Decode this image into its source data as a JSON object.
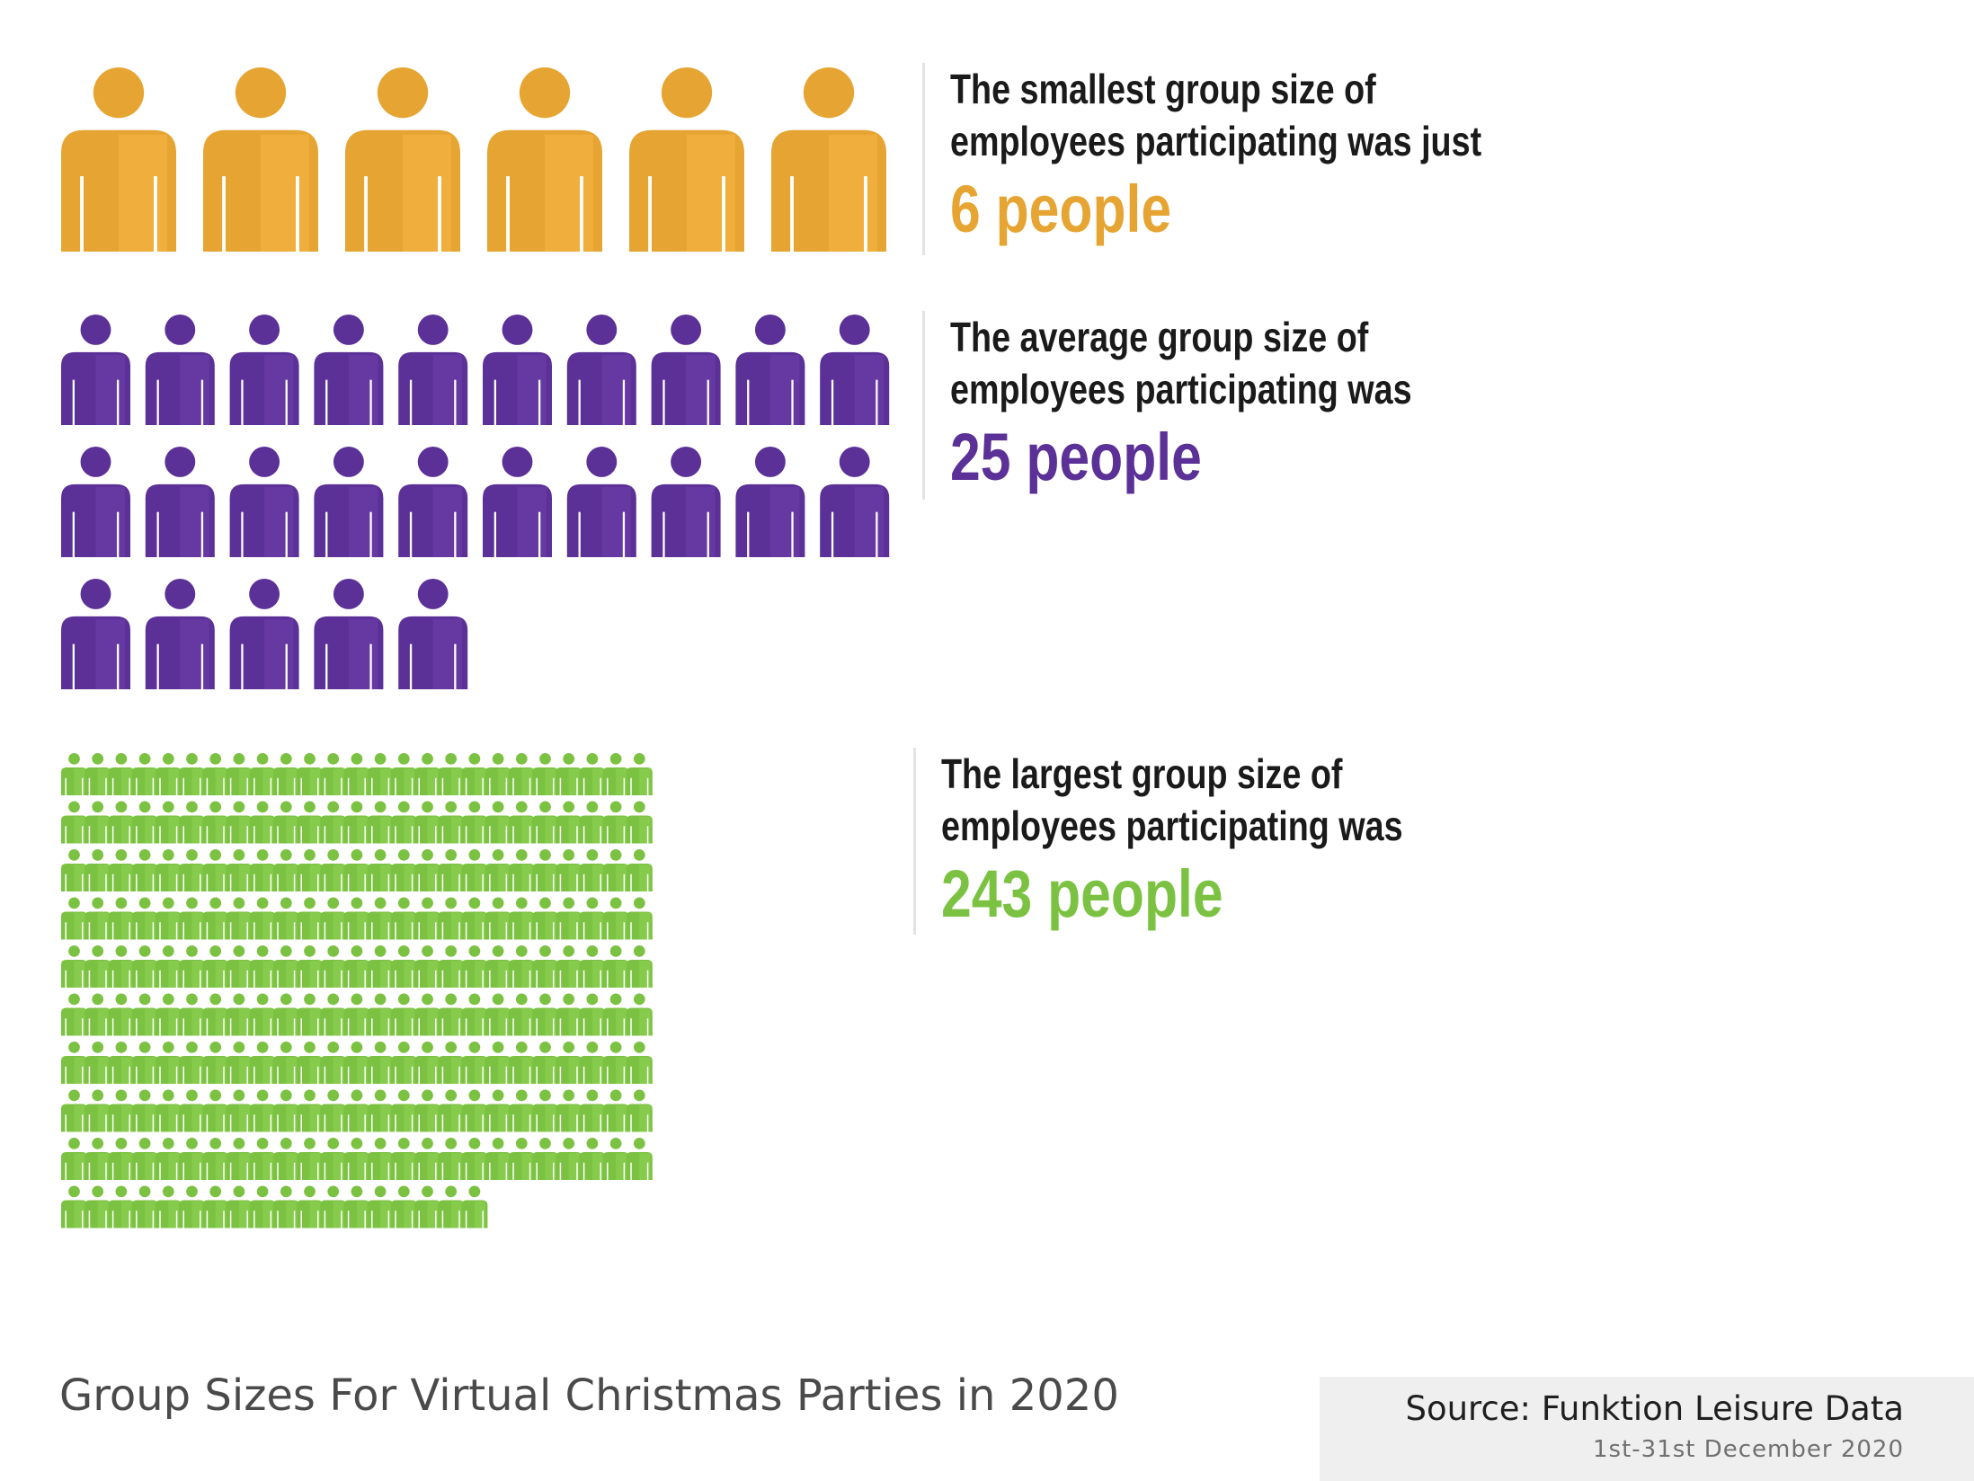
{
  "chart_data": {
    "type": "pictograph",
    "title": "Group Sizes For Virtual Christmas Parties in 2020",
    "rows": [
      {
        "label": "The smallest group size of employees participating was just",
        "value_text": "6 people",
        "count": 6,
        "color": "#E6A533"
      },
      {
        "label": "The average group size of employees participating was",
        "value_text": "25 people",
        "count": 25,
        "color": "#5B3097"
      },
      {
        "label": "The largest group size of employees participating was",
        "value_text": "243 people",
        "count": 243,
        "color": "#7CC242"
      }
    ],
    "source": "Source: Funktion Leisure Data",
    "source_date": "1st-31st December 2020"
  },
  "icon": "person-icon"
}
